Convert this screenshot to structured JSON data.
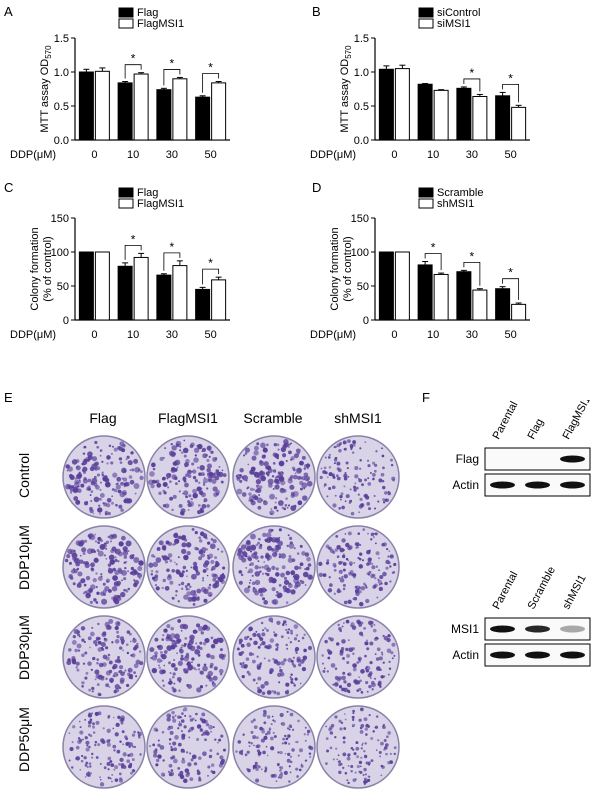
{
  "panel_labels": {
    "a": "A",
    "b": "B",
    "c": "C",
    "d": "D",
    "e": "E",
    "f": "F"
  },
  "chart_data": [
    {
      "type": "bar",
      "panel": "A",
      "ylabel": "MTT assay OD570",
      "xlabel": "DDP(μM)",
      "categories": [
        "0",
        "10",
        "30",
        "50"
      ],
      "yticks": [
        "0.0",
        "0.5",
        "1.0",
        "1.5"
      ],
      "ylim": [
        0,
        1.5
      ],
      "series": [
        {
          "name": "Flag",
          "color": "#000000",
          "values": [
            1.0,
            0.84,
            0.74,
            0.63
          ],
          "errors": [
            0.04,
            0.02,
            0.02,
            0.02
          ]
        },
        {
          "name": "FlagMSI1",
          "color": "#ffffff",
          "values": [
            1.01,
            0.97,
            0.9,
            0.84
          ],
          "errors": [
            0.05,
            0.02,
            0.02,
            0.02
          ]
        }
      ],
      "significance": [
        "",
        "*",
        "*",
        "*"
      ]
    },
    {
      "type": "bar",
      "panel": "B",
      "ylabel": "MTT assay OD570",
      "xlabel": "DDP(μM)",
      "categories": [
        "0",
        "10",
        "30",
        "50"
      ],
      "yticks": [
        "0.0",
        "0.5",
        "1.0",
        "1.5"
      ],
      "ylim": [
        0,
        1.5
      ],
      "series": [
        {
          "name": "siControl",
          "color": "#000000",
          "values": [
            1.04,
            0.82,
            0.76,
            0.65
          ],
          "errors": [
            0.05,
            0.01,
            0.02,
            0.05
          ]
        },
        {
          "name": "siMSI1",
          "color": "#ffffff",
          "values": [
            1.05,
            0.73,
            0.64,
            0.48
          ],
          "errors": [
            0.05,
            0.01,
            0.03,
            0.03
          ]
        }
      ],
      "significance": [
        "",
        "",
        "*",
        "*"
      ]
    },
    {
      "type": "bar",
      "panel": "C",
      "ylabel": "Colony formation (% of control)",
      "xlabel": "DDP(μM)",
      "categories": [
        "0",
        "10",
        "30",
        "50"
      ],
      "yticks": [
        "0",
        "50",
        "100",
        "150"
      ],
      "ylim": [
        0,
        150
      ],
      "series": [
        {
          "name": "Flag",
          "color": "#000000",
          "values": [
            100,
            79,
            66,
            45
          ],
          "errors": [
            0,
            5,
            2,
            3
          ]
        },
        {
          "name": "FlagMSI1",
          "color": "#ffffff",
          "values": [
            100,
            92,
            80,
            59
          ],
          "errors": [
            0,
            6,
            7,
            4
          ]
        }
      ],
      "significance": [
        "",
        "*",
        "*",
        "*"
      ]
    },
    {
      "type": "bar",
      "panel": "D",
      "ylabel": "Colony formation (% of control)",
      "xlabel": "DDP(μM)",
      "categories": [
        "0",
        "10",
        "30",
        "50"
      ],
      "yticks": [
        "0",
        "50",
        "100",
        "150"
      ],
      "ylim": [
        0,
        150
      ],
      "series": [
        {
          "name": "Scramble",
          "color": "#000000",
          "values": [
            100,
            81,
            71,
            46
          ],
          "errors": [
            0,
            5,
            2,
            3
          ]
        },
        {
          "name": "shMSI1",
          "color": "#ffffff",
          "values": [
            100,
            67,
            44,
            23
          ],
          "errors": [
            0,
            2,
            2,
            2
          ]
        }
      ],
      "significance": [
        "",
        "*",
        "*",
        "*"
      ]
    }
  ],
  "panel_e": {
    "columns": [
      "Flag",
      "FlagMSI1",
      "Scramble",
      "shMSI1"
    ],
    "rows": [
      "Control",
      "DDP10μM",
      "DDP30μM",
      "DDP50μM"
    ],
    "density": [
      [
        0.85,
        0.8,
        0.85,
        0.5
      ],
      [
        0.85,
        0.8,
        0.85,
        0.6
      ],
      [
        0.7,
        0.8,
        0.6,
        0.6
      ],
      [
        0.55,
        0.6,
        0.5,
        0.45
      ]
    ],
    "stain_color": "#5a3f9a",
    "plate_bg": "#d8d3e6"
  },
  "panel_f": {
    "blot1": {
      "lanes": [
        "Parental",
        "Flag",
        "FlagMSI1"
      ],
      "rows": [
        {
          "label": "Flag",
          "intensity": [
            0,
            0,
            1
          ]
        },
        {
          "label": "Actin",
          "intensity": [
            1,
            1,
            1
          ]
        }
      ]
    },
    "blot2": {
      "lanes": [
        "Parental",
        "Scramble",
        "shMSI1"
      ],
      "rows": [
        {
          "label": "MSI1",
          "intensity": [
            1,
            0.9,
            0.35
          ]
        },
        {
          "label": "Actin",
          "intensity": [
            1,
            1,
            1
          ]
        }
      ]
    }
  }
}
